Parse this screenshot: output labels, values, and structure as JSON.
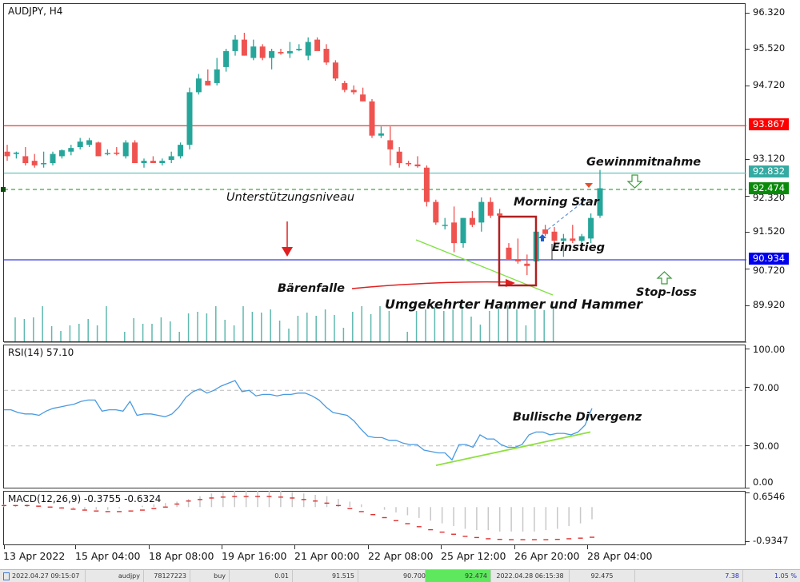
{
  "chart_header": {
    "symbol_timeframe": "AUDJPY, H4"
  },
  "price_axis": {
    "ticks": [
      "96.320",
      "95.520",
      "94.720",
      "93.120",
      "92.320",
      "91.520",
      "90.720",
      "89.920"
    ],
    "tags": {
      "resistance": {
        "value": "93.867",
        "color": "#ff0000"
      },
      "take_profit": {
        "value": "92.832",
        "color": "#2fa8a0"
      },
      "current": {
        "value": "92.474",
        "color": "#0a8a0a"
      },
      "support": {
        "value": "90.934",
        "color": "#0000ee"
      }
    }
  },
  "rsi": {
    "title": "RSI(14) 57.10",
    "ticks": [
      "100.00",
      "70.00",
      "30.00",
      "0.00"
    ]
  },
  "macd": {
    "title": "MACD(12,26,9) -0.3755 -0.6324",
    "ticks": [
      "0.6546",
      "-0.9347"
    ]
  },
  "time_axis": [
    "13 Apr 2022",
    "15 Apr 04:00",
    "18 Apr 08:00",
    "19 Apr 16:00",
    "21 Apr 00:00",
    "22 Apr 08:00",
    "25 Apr 12:00",
    "26 Apr 20:00",
    "28 Apr 04:00"
  ],
  "annotations": {
    "support_level": "Unterstützungsniveau",
    "bear_trap": "Bärenfalle",
    "hammer": "Umgekehrter Hammer und Hammer",
    "morning_star": "Morning Star",
    "entry": "Einstieg",
    "take_profit": "Gewinnmitnahme",
    "stop_loss": "Stop-loss",
    "bullish_divergence": "Bullische Divergenz"
  },
  "status_bar": {
    "time_open": "2022.04.27 09:15:07",
    "symbol": "audjpy",
    "ticket": "78127223",
    "type": "buy",
    "volume": "0.01",
    "open_price": "91.515",
    "sl": "90.700",
    "tp": "92.474",
    "time_close": "2022.04.28 06:15:38",
    "price": "92.475",
    "profit": "7.38",
    "percent": "1.05 %"
  },
  "chart_data": [
    {
      "type": "candlestick",
      "title": "AUDJPY, H4",
      "xlabel": "",
      "ylabel": "Price",
      "ylim": [
        89.6,
        96.6
      ],
      "x_tick_labels": [
        "13 Apr 2022",
        "15 Apr 04:00",
        "18 Apr 08:00",
        "19 Apr 16:00",
        "21 Apr 00:00",
        "22 Apr 08:00",
        "25 Apr 12:00",
        "26 Apr 20:00",
        "28 Apr 04:00"
      ],
      "ohlc": [
        [
          93.3,
          93.45,
          93.1,
          93.2
        ],
        [
          93.25,
          93.3,
          93.15,
          93.28
        ],
        [
          93.2,
          93.4,
          93.0,
          93.05
        ],
        [
          93.1,
          93.25,
          92.95,
          93.0
        ],
        [
          93.05,
          93.3,
          92.95,
          93.05
        ],
        [
          93.05,
          93.3,
          93.0,
          93.25
        ],
        [
          93.2,
          93.35,
          93.15,
          93.33
        ],
        [
          93.3,
          93.45,
          93.22,
          93.38
        ],
        [
          93.4,
          93.6,
          93.35,
          93.52
        ],
        [
          93.45,
          93.6,
          93.4,
          93.55
        ],
        [
          93.5,
          93.52,
          93.2,
          93.2
        ],
        [
          93.25,
          93.35,
          93.22,
          93.27
        ],
        [
          93.28,
          93.4,
          93.22,
          93.25
        ],
        [
          93.2,
          93.55,
          93.15,
          93.5
        ],
        [
          93.5,
          93.55,
          93.05,
          93.05
        ],
        [
          93.05,
          93.15,
          92.95,
          93.1
        ],
        [
          93.1,
          93.2,
          93.05,
          93.05
        ],
        [
          93.05,
          93.15,
          93.0,
          93.1
        ],
        [
          93.12,
          93.3,
          93.05,
          93.2
        ],
        [
          93.2,
          93.5,
          93.15,
          93.45
        ],
        [
          93.45,
          94.7,
          93.35,
          94.6
        ],
        [
          94.6,
          95.0,
          94.55,
          94.9
        ],
        [
          94.85,
          95.1,
          94.75,
          94.75
        ],
        [
          94.8,
          95.35,
          94.75,
          95.1
        ],
        [
          95.15,
          95.55,
          95.05,
          95.5
        ],
        [
          95.5,
          95.85,
          95.4,
          95.75
        ],
        [
          95.75,
          95.9,
          95.4,
          95.4
        ],
        [
          95.35,
          95.75,
          95.3,
          95.6
        ],
        [
          95.6,
          95.65,
          95.3,
          95.35
        ],
        [
          95.35,
          95.55,
          95.1,
          95.5
        ],
        [
          95.48,
          95.55,
          95.42,
          95.45
        ],
        [
          95.45,
          95.7,
          95.35,
          95.5
        ],
        [
          95.52,
          95.65,
          95.5,
          95.55
        ],
        [
          95.4,
          95.8,
          95.3,
          95.7
        ],
        [
          95.75,
          95.8,
          95.55,
          95.5
        ],
        [
          95.55,
          95.65,
          95.2,
          95.25
        ],
        [
          95.25,
          95.3,
          94.85,
          94.9
        ],
        [
          94.8,
          94.85,
          94.6,
          94.65
        ],
        [
          94.65,
          94.75,
          94.55,
          94.6
        ],
        [
          94.55,
          94.7,
          94.4,
          94.4
        ],
        [
          94.4,
          94.45,
          93.6,
          93.65
        ],
        [
          93.65,
          93.85,
          93.6,
          93.7
        ],
        [
          93.55,
          93.85,
          93.0,
          93.35
        ],
        [
          93.3,
          93.4,
          92.95,
          93.05
        ],
        [
          93.05,
          93.1,
          92.98,
          93.03
        ],
        [
          93.02,
          93.2,
          92.95,
          92.98
        ],
        [
          92.95,
          93.0,
          92.1,
          92.2
        ],
        [
          92.2,
          92.25,
          91.7,
          91.75
        ],
        [
          91.7,
          91.85,
          91.6,
          91.7
        ],
        [
          91.75,
          92.1,
          91.1,
          91.3
        ],
        [
          91.3,
          91.85,
          91.2,
          91.85
        ],
        [
          91.85,
          92.0,
          91.65,
          91.7
        ],
        [
          91.75,
          92.3,
          91.55,
          92.2
        ],
        [
          92.2,
          92.3,
          91.85,
          91.9
        ],
        [
          91.95,
          92.05,
          91.85,
          91.9
        ],
        [
          91.2,
          91.3,
          90.95,
          90.95
        ],
        [
          90.95,
          91.4,
          90.85,
          90.9
        ],
        [
          90.85,
          91.05,
          90.6,
          90.8
        ],
        [
          90.9,
          91.6,
          90.8,
          91.55
        ],
        [
          91.6,
          91.7,
          91.45,
          91.5
        ],
        [
          91.55,
          91.65,
          91.3,
          91.35
        ],
        [
          91.35,
          91.5,
          91.0,
          91.4
        ],
        [
          91.4,
          91.7,
          91.3,
          91.35
        ],
        [
          91.35,
          91.5,
          91.25,
          91.45
        ],
        [
          91.4,
          91.95,
          91.3,
          91.85
        ],
        [
          91.9,
          92.9,
          91.85,
          92.5
        ]
      ]
    },
    {
      "type": "bar",
      "title": "Volume",
      "values": [
        30,
        28,
        30,
        44,
        19,
        13,
        20,
        22,
        28,
        20,
        44,
        0,
        12,
        29,
        22,
        22,
        30,
        25,
        12,
        35,
        37,
        35,
        44,
        27,
        20,
        44,
        37,
        36,
        40,
        26,
        16,
        32,
        36,
        32,
        40,
        33,
        17,
        37,
        44,
        34,
        44,
        38,
        0,
        12,
        38,
        40,
        43,
        38,
        40,
        44,
        31,
        21,
        38,
        41,
        45,
        40,
        20,
        40,
        39,
        44
      ]
    },
    {
      "type": "line",
      "title": "RSI(14) 57.10",
      "ylim": [
        0,
        100
      ],
      "hlines": [
        70,
        30
      ],
      "values": [
        56,
        56,
        54,
        53,
        53,
        52,
        55,
        57,
        58,
        59,
        60,
        62,
        63,
        63,
        55,
        56,
        56,
        55,
        62,
        52,
        53,
        53,
        52,
        51,
        53,
        58,
        65,
        69,
        71,
        68,
        70,
        73,
        75,
        77,
        69,
        70,
        66,
        67,
        67,
        66,
        67,
        67,
        68,
        68,
        66,
        63,
        58,
        54,
        53,
        52,
        48,
        42,
        37,
        36,
        36,
        34,
        34,
        32,
        31,
        31,
        27,
        26,
        25,
        25,
        20,
        31,
        31,
        29,
        38,
        35,
        35,
        31,
        29,
        29,
        31,
        38,
        40,
        40,
        38,
        39,
        39,
        38,
        40,
        45,
        57
      ],
      "annotation": "Bullische Divergenz"
    },
    {
      "type": "bar+line",
      "title": "MACD(12,26,9) -0.3755 -0.6324",
      "ylim": [
        -0.9347,
        0.6546
      ],
      "histogram": [
        0.1,
        0.08,
        0.1,
        0.05,
        0.0,
        -0.05,
        -0.05,
        -0.1,
        -0.1,
        -0.1,
        -0.05,
        0.0,
        0.05,
        0.1,
        0.15,
        0.2,
        0.3,
        0.4,
        0.5,
        0.55,
        0.6,
        0.6,
        0.6,
        0.6,
        0.6,
        0.55,
        0.5,
        0.45,
        0.4,
        0.3,
        0.2,
        0.1,
        0.0,
        -0.1,
        -0.2,
        -0.3,
        -0.4,
        -0.5,
        -0.6,
        -0.7,
        -0.8,
        -0.85,
        -0.85,
        -0.9,
        -0.9,
        -0.9,
        -0.9,
        -0.85,
        -0.8,
        -0.7,
        -0.6,
        -0.45
      ],
      "signal": [
        0.3,
        0.3,
        0.3,
        0.28,
        0.25,
        0.22,
        0.18,
        0.15,
        0.12,
        0.1,
        0.1,
        0.12,
        0.15,
        0.2,
        0.25,
        0.35,
        0.45,
        0.5,
        0.55,
        0.58,
        0.6,
        0.6,
        0.6,
        0.6,
        0.58,
        0.55,
        0.5,
        0.45,
        0.38,
        0.3,
        0.2,
        0.1,
        0.0,
        -0.1,
        -0.2,
        -0.3,
        -0.4,
        -0.5,
        -0.58,
        -0.65,
        -0.72,
        -0.76,
        -0.8,
        -0.82,
        -0.83,
        -0.83,
        -0.83,
        -0.83,
        -0.82,
        -0.8,
        -0.78,
        -0.75
      ]
    }
  ]
}
